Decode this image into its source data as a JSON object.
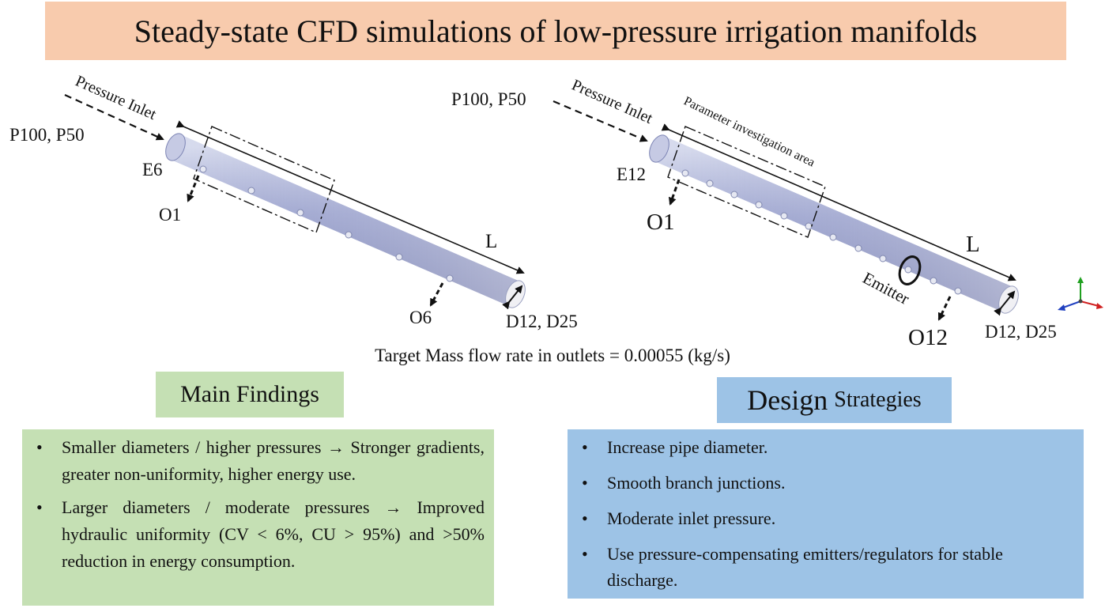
{
  "title": "Steady-state CFD simulations of low-pressure irrigation manifolds",
  "left_diagram": {
    "pressure_label": "P100, P50",
    "inlet_label": "Pressure Inlet",
    "emitter_first": "E6",
    "outlet_first": "O1",
    "outlet_last": "O6",
    "length_label": "L",
    "diameter_label": "D12, D25"
  },
  "right_diagram": {
    "pressure_label": "P100, P50",
    "inlet_label": "Pressure Inlet",
    "area_label": "Parameter investigation area",
    "emitter_first": "E12",
    "outlet_first": "O1",
    "outlet_last": "O12",
    "length_label": "L",
    "emitter_label": "Emitter",
    "diameter_label": "D12, D25"
  },
  "target_text": "Target Mass flow rate in outlets = 0.00055 (kg/s)",
  "findings": {
    "header": "Main Findings",
    "items": [
      "Smaller diameters / higher pressures → Stronger gradients, greater non-uniformity, higher energy use.",
      "Larger diameters / moderate pressures → Improved hydraulic uniformity (CV < 6%, CU > 95%) and >50% reduction in energy consumption."
    ]
  },
  "strategies": {
    "header_big": "Design",
    "header_small": "Strategies",
    "items": [
      "Increase pipe diameter.",
      "Smooth branch junctions.",
      "Moderate inlet pressure.",
      "Use pressure-compensating emitters/regulators for stable discharge."
    ]
  },
  "colors": {
    "title_bg": "#f8cbad",
    "findings_bg": "#c5e0b4",
    "strategies_bg": "#9dc3e6",
    "pipe": "#9aa3cc",
    "axis_x": "#d02020",
    "axis_y": "#20a020",
    "axis_z": "#2040c0"
  }
}
